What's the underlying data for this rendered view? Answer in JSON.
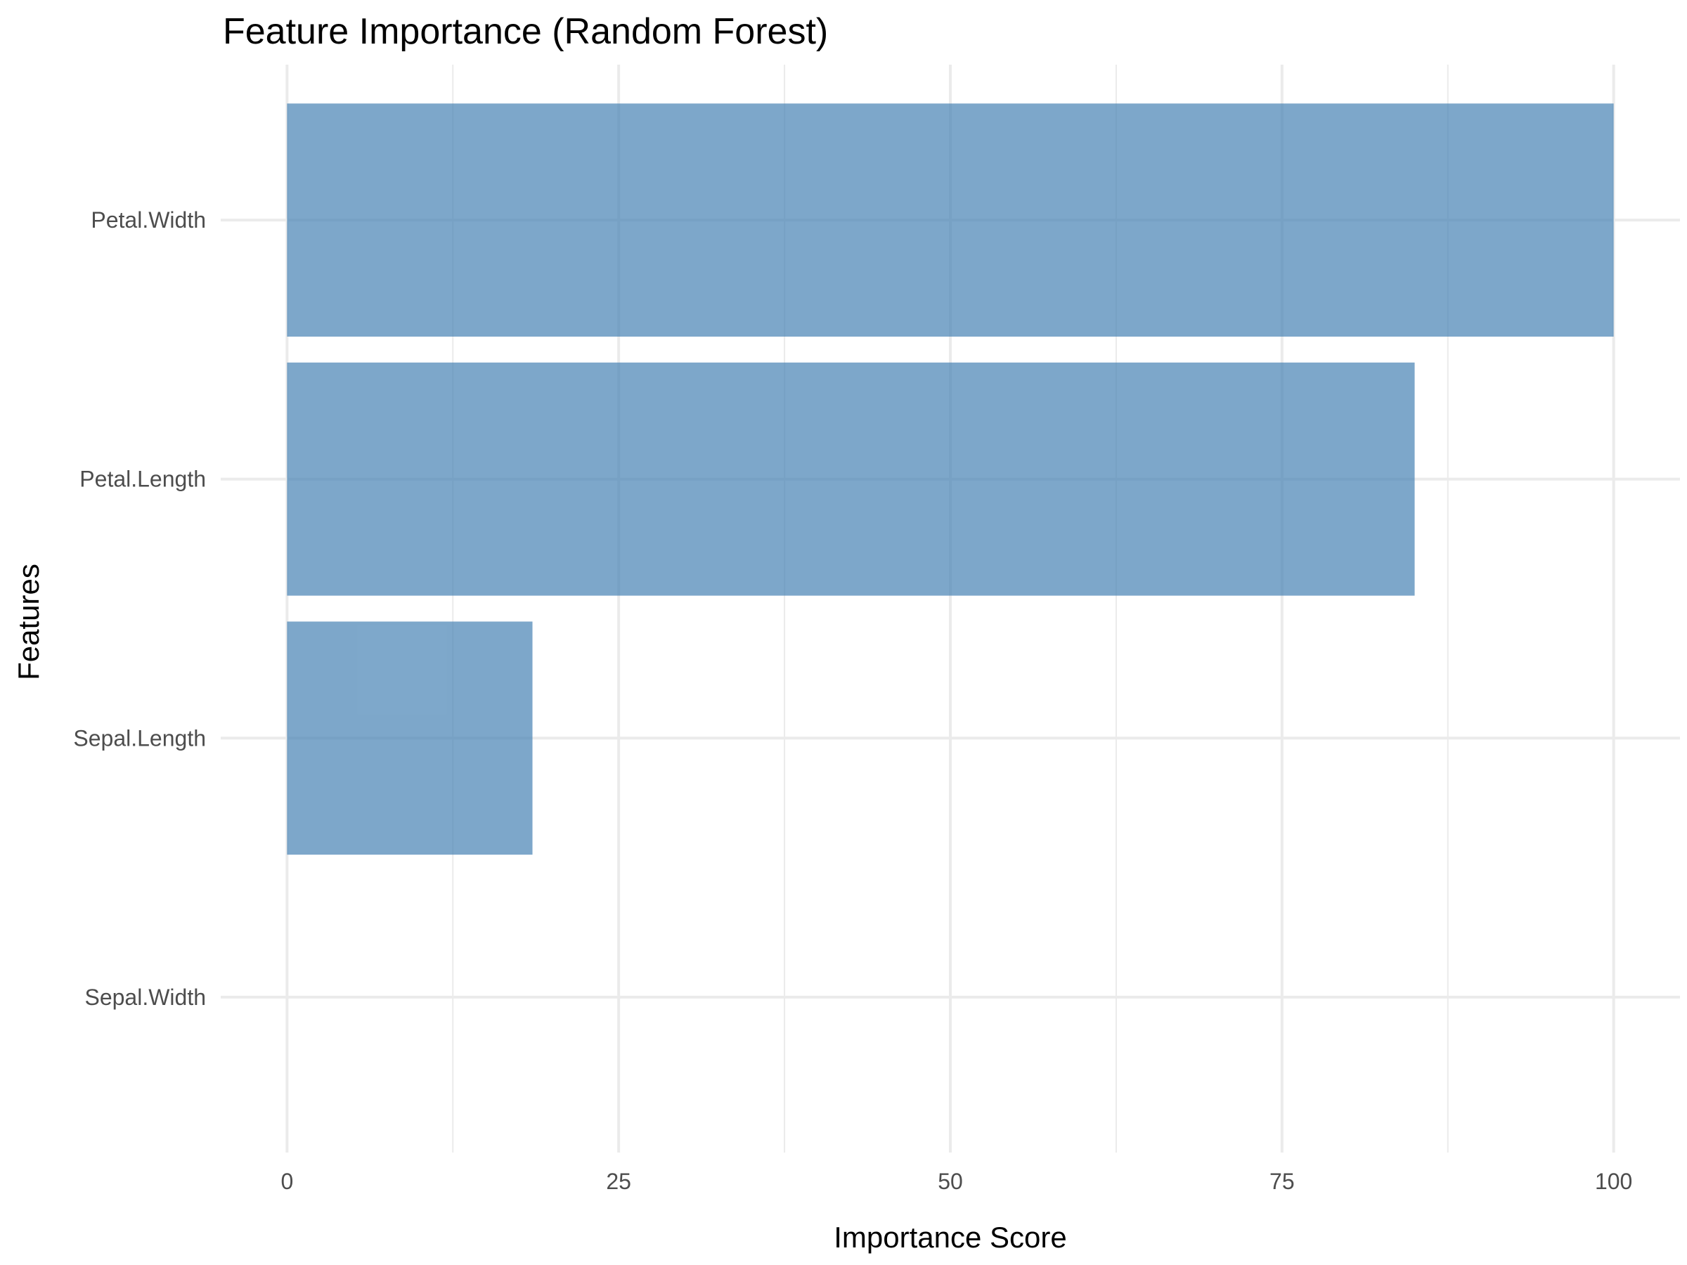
{
  "chart_data": {
    "type": "bar",
    "orientation": "horizontal",
    "title": "Feature Importance (Random Forest)",
    "xlabel": "Importance Score",
    "ylabel": "Features",
    "categories": [
      "Petal.Width",
      "Petal.Length",
      "Sepal.Length",
      "Sepal.Width"
    ],
    "values": [
      100,
      85,
      18.5,
      0
    ],
    "xlim": [
      -5,
      105
    ],
    "x_ticks": [
      0,
      25,
      50,
      75,
      100
    ],
    "x_tick_labels": [
      "0",
      "25",
      "50",
      "75",
      "100"
    ],
    "grid": true,
    "legend": "none",
    "bar_color": "#4682b4",
    "bar_opacity": 0.7
  }
}
